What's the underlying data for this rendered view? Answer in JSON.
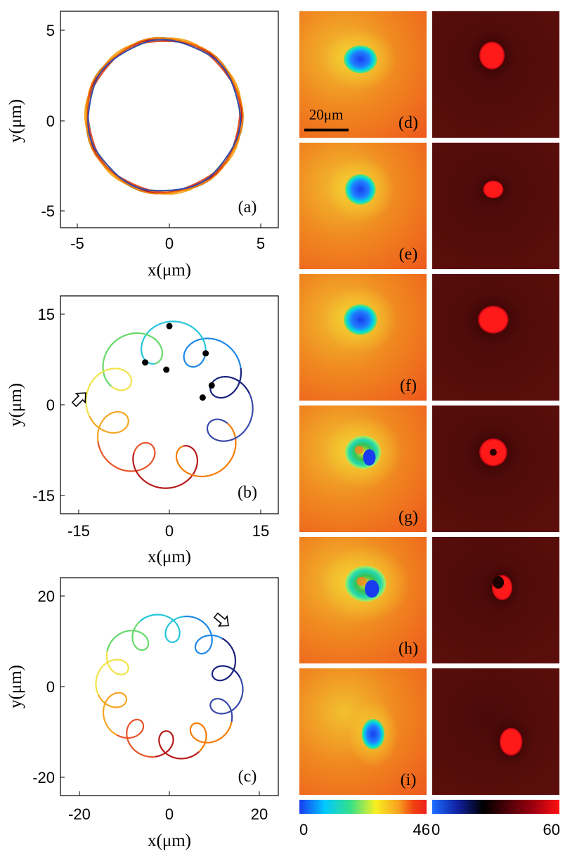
{
  "figure": {
    "panel_labels": [
      "(a)",
      "(b)",
      "(c)",
      "(d)",
      "(e)",
      "(f)",
      "(g)",
      "(h)",
      "(i)"
    ],
    "scale_bar": "20μm",
    "colorbar_left": {
      "min": "0",
      "max": "46",
      "colors": [
        "#1a3cf0",
        "#00c8ff",
        "#36e08a",
        "#f8f020",
        "#f8a020",
        "#f04010",
        "#f02020"
      ]
    },
    "colorbar_right": {
      "min": "0",
      "max": "60",
      "colors": [
        "#1a6cff",
        "#1020a0",
        "#000000",
        "#500008",
        "#a00010",
        "#ff1010"
      ]
    }
  },
  "chart_data": [
    {
      "type": "line",
      "panel": "(a)",
      "xlabel": "x(μm)",
      "ylabel": "y(μm)",
      "xlim": [
        -6,
        6
      ],
      "ylim": [
        -6,
        6
      ],
      "xticks": [
        "-5",
        "0",
        "5"
      ],
      "yticks": [
        "-5",
        "0",
        "5"
      ],
      "trajectory": {
        "kind": "circle",
        "center": [
          -0.3,
          0.2
        ],
        "radius": 4.25
      },
      "grid": false
    },
    {
      "type": "line",
      "panel": "(b)",
      "xlabel": "x(μm)",
      "ylabel": "y(μm)",
      "xlim": [
        -18,
        18
      ],
      "ylim": [
        -18,
        18
      ],
      "xticks": [
        "-15",
        "0",
        "15"
      ],
      "yticks": [
        "-15",
        "0",
        "15"
      ],
      "trajectory": {
        "kind": "looping",
        "orbit_radius": 10.5,
        "loop_radius": 3.3,
        "lobes": 9
      },
      "markers": [
        [
          0,
          13
        ],
        [
          6,
          8.5
        ],
        [
          7,
          3.2
        ],
        [
          5.5,
          1.2
        ],
        [
          -0.5,
          5.8
        ],
        [
          -4,
          7
        ]
      ],
      "grid": false
    },
    {
      "type": "line",
      "panel": "(c)",
      "xlabel": "x(μm)",
      "ylabel": "y(μm)",
      "xlim": [
        -24,
        24
      ],
      "ylim": [
        -24,
        24
      ],
      "xticks": [
        "-20",
        "0",
        "20"
      ],
      "yticks": [
        "-20",
        "0",
        "20"
      ],
      "trajectory": {
        "kind": "looping",
        "orbit_radius": 13,
        "loop_radius": 3.2,
        "lobes": 11
      },
      "grid": false
    }
  ]
}
